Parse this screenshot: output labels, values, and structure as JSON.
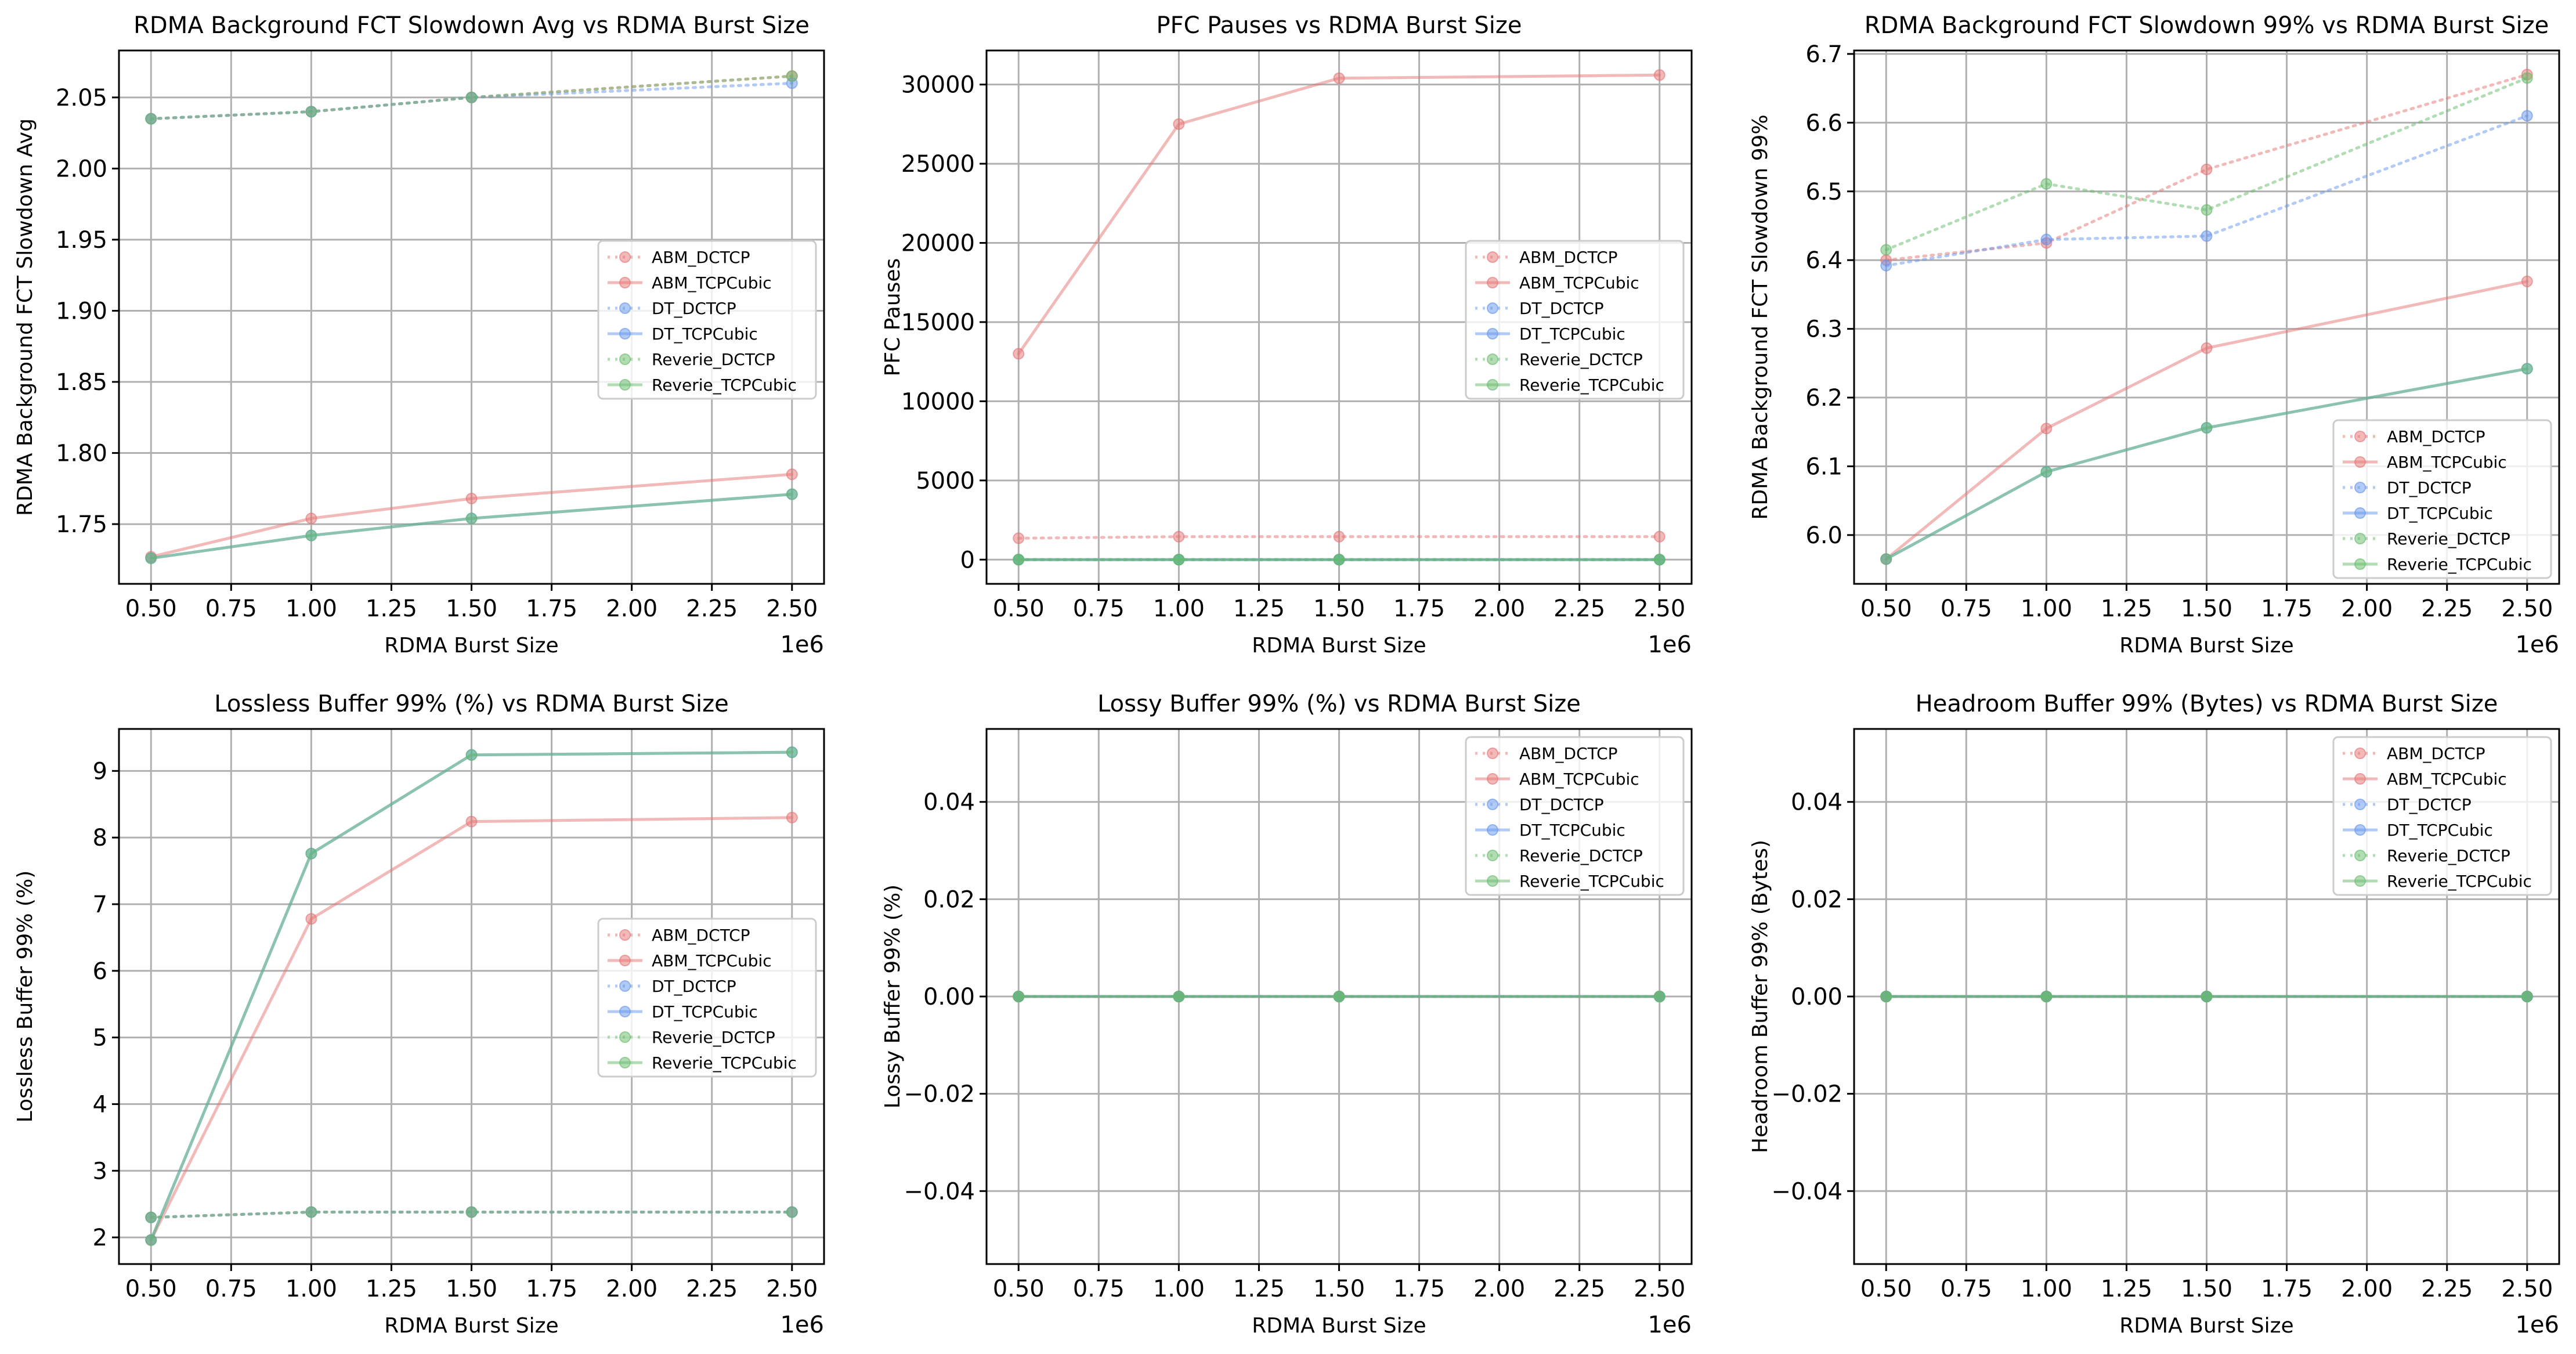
{
  "styles": {
    "ABM_DCTCP": {
      "color": "#e57373",
      "dash": "dotted"
    },
    "ABM_TCPCubic": {
      "color": "#e57373",
      "dash": "solid"
    },
    "DT_DCTCP": {
      "color": "#6495ed",
      "dash": "dotted"
    },
    "DT_TCPCubic": {
      "color": "#6495ed",
      "dash": "solid"
    },
    "Reverie_DCTCP": {
      "color": "#66bb6a",
      "dash": "dotted"
    },
    "Reverie_TCPCubic": {
      "color": "#66bb6a",
      "dash": "solid"
    }
  },
  "chart_data": [
    {
      "type": "line",
      "title": "RDMA Background FCT Slowdown Avg vs RDMA Burst Size",
      "xlabel": "RDMA Burst Size",
      "ylabel": "RDMA Background FCT Slowdown Avg",
      "x_offset_label": "1e6",
      "xlim": [
        0.4,
        2.6
      ],
      "ylim": [
        1.708,
        2.083
      ],
      "xticks": [
        0.5,
        0.75,
        1.0,
        1.25,
        1.5,
        1.75,
        2.0,
        2.25,
        2.5
      ],
      "xtick_labels": [
        "0.50",
        "0.75",
        "1.00",
        "1.25",
        "1.50",
        "1.75",
        "2.00",
        "2.25",
        "2.50"
      ],
      "yticks": [
        1.75,
        1.8,
        1.85,
        1.9,
        1.95,
        2.0,
        2.05
      ],
      "ytick_labels": [
        "1.75",
        "1.80",
        "1.85",
        "1.90",
        "1.95",
        "2.00",
        "2.05"
      ],
      "grid": true,
      "legend_position": "center-right",
      "x": [
        0.5,
        1.0,
        1.5,
        2.5
      ],
      "series": [
        {
          "name": "ABM_DCTCP",
          "values": [
            2.035,
            2.04,
            2.05,
            2.065
          ]
        },
        {
          "name": "ABM_TCPCubic",
          "values": [
            1.727,
            1.754,
            1.768,
            1.785
          ]
        },
        {
          "name": "DT_DCTCP",
          "values": [
            2.035,
            2.04,
            2.05,
            2.06
          ]
        },
        {
          "name": "DT_TCPCubic",
          "values": [
            1.726,
            1.742,
            1.754,
            1.771
          ]
        },
        {
          "name": "Reverie_DCTCP",
          "values": [
            2.035,
            2.04,
            2.05,
            2.065
          ]
        },
        {
          "name": "Reverie_TCPCubic",
          "values": [
            1.726,
            1.742,
            1.754,
            1.771
          ]
        }
      ]
    },
    {
      "type": "line",
      "title": "PFC Pauses vs RDMA Burst Size",
      "xlabel": "RDMA Burst Size",
      "ylabel": "PFC Pauses",
      "x_offset_label": "1e6",
      "xlim": [
        0.4,
        2.6
      ],
      "ylim": [
        -1530,
        32150
      ],
      "xticks": [
        0.5,
        0.75,
        1.0,
        1.25,
        1.5,
        1.75,
        2.0,
        2.25,
        2.5
      ],
      "xtick_labels": [
        "0.50",
        "0.75",
        "1.00",
        "1.25",
        "1.50",
        "1.75",
        "2.00",
        "2.25",
        "2.50"
      ],
      "yticks": [
        0,
        5000,
        10000,
        15000,
        20000,
        25000,
        30000
      ],
      "ytick_labels": [
        "0",
        "5000",
        "10000",
        "15000",
        "20000",
        "25000",
        "30000"
      ],
      "grid": true,
      "legend_position": "center-right",
      "x": [
        0.5,
        1.0,
        1.5,
        2.5
      ],
      "series": [
        {
          "name": "ABM_DCTCP",
          "values": [
            1350,
            1450,
            1450,
            1450
          ]
        },
        {
          "name": "ABM_TCPCubic",
          "values": [
            13000,
            27500,
            30400,
            30600
          ]
        },
        {
          "name": "DT_DCTCP",
          "values": [
            0,
            0,
            0,
            0
          ]
        },
        {
          "name": "DT_TCPCubic",
          "values": [
            0,
            0,
            0,
            0
          ]
        },
        {
          "name": "Reverie_DCTCP",
          "values": [
            0,
            0,
            0,
            0
          ]
        },
        {
          "name": "Reverie_TCPCubic",
          "values": [
            0,
            0,
            0,
            0
          ]
        }
      ]
    },
    {
      "type": "line",
      "title": "RDMA Background FCT Slowdown 99% vs RDMA Burst Size",
      "xlabel": "RDMA Burst Size",
      "ylabel": "RDMA Background FCT Slowdown 99%",
      "x_offset_label": "1e6",
      "xlim": [
        0.4,
        2.6
      ],
      "ylim": [
        5.929,
        6.705
      ],
      "xticks": [
        0.5,
        0.75,
        1.0,
        1.25,
        1.5,
        1.75,
        2.0,
        2.25,
        2.5
      ],
      "xtick_labels": [
        "0.50",
        "0.75",
        "1.00",
        "1.25",
        "1.50",
        "1.75",
        "2.00",
        "2.25",
        "2.50"
      ],
      "yticks": [
        6.0,
        6.1,
        6.2,
        6.3,
        6.4,
        6.5,
        6.6,
        6.7
      ],
      "ytick_labels": [
        "6.0",
        "6.1",
        "6.2",
        "6.3",
        "6.4",
        "6.5",
        "6.6",
        "6.7"
      ],
      "grid": true,
      "legend_position": "lower-right",
      "x": [
        0.5,
        1.0,
        1.5,
        2.5
      ],
      "series": [
        {
          "name": "ABM_DCTCP",
          "values": [
            6.4,
            6.425,
            6.532,
            6.67
          ]
        },
        {
          "name": "ABM_TCPCubic",
          "values": [
            5.965,
            6.155,
            6.272,
            6.369
          ]
        },
        {
          "name": "DT_DCTCP",
          "values": [
            6.392,
            6.43,
            6.435,
            6.61
          ]
        },
        {
          "name": "DT_TCPCubic",
          "values": [
            5.965,
            6.092,
            6.156,
            6.242
          ]
        },
        {
          "name": "Reverie_DCTCP",
          "values": [
            6.415,
            6.511,
            6.473,
            6.665
          ]
        },
        {
          "name": "Reverie_TCPCubic",
          "values": [
            5.965,
            6.092,
            6.156,
            6.242
          ]
        }
      ]
    },
    {
      "type": "line",
      "title": "Lossless Buffer 99% (%) vs RDMA Burst Size",
      "xlabel": "RDMA Burst Size",
      "ylabel": "Lossless Buffer 99% (%)",
      "x_offset_label": "1e6",
      "xlim": [
        0.4,
        2.6
      ],
      "ylim": [
        1.6,
        9.63
      ],
      "xticks": [
        0.5,
        0.75,
        1.0,
        1.25,
        1.5,
        1.75,
        2.0,
        2.25,
        2.5
      ],
      "xtick_labels": [
        "0.50",
        "0.75",
        "1.00",
        "1.25",
        "1.50",
        "1.75",
        "2.00",
        "2.25",
        "2.50"
      ],
      "yticks": [
        2,
        3,
        4,
        5,
        6,
        7,
        8,
        9
      ],
      "ytick_labels": [
        "2",
        "3",
        "4",
        "5",
        "6",
        "7",
        "8",
        "9"
      ],
      "grid": true,
      "legend_position": "center-right",
      "x": [
        0.5,
        1.0,
        1.5,
        2.5
      ],
      "series": [
        {
          "name": "ABM_DCTCP",
          "values": [
            2.3,
            2.38,
            2.38,
            2.38
          ]
        },
        {
          "name": "ABM_TCPCubic",
          "values": [
            1.96,
            6.78,
            8.24,
            8.3
          ]
        },
        {
          "name": "DT_DCTCP",
          "values": [
            2.3,
            2.38,
            2.38,
            2.38
          ]
        },
        {
          "name": "DT_TCPCubic",
          "values": [
            1.96,
            7.76,
            9.24,
            9.28
          ]
        },
        {
          "name": "Reverie_DCTCP",
          "values": [
            2.3,
            2.38,
            2.38,
            2.38
          ]
        },
        {
          "name": "Reverie_TCPCubic",
          "values": [
            1.96,
            7.76,
            9.24,
            9.28
          ]
        }
      ]
    },
    {
      "type": "line",
      "title": "Lossy Buffer 99% (%) vs RDMA Burst Size",
      "xlabel": "RDMA Burst Size",
      "ylabel": "Lossy Buffer 99% (%)",
      "x_offset_label": "1e6",
      "xlim": [
        0.4,
        2.6
      ],
      "ylim": [
        -0.055,
        0.055
      ],
      "xticks": [
        0.5,
        0.75,
        1.0,
        1.25,
        1.5,
        1.75,
        2.0,
        2.25,
        2.5
      ],
      "xtick_labels": [
        "0.50",
        "0.75",
        "1.00",
        "1.25",
        "1.50",
        "1.75",
        "2.00",
        "2.25",
        "2.50"
      ],
      "yticks": [
        -0.04,
        -0.02,
        0.0,
        0.02,
        0.04
      ],
      "ytick_labels": [
        "−0.04",
        "−0.02",
        "0.00",
        "0.02",
        "0.04"
      ],
      "grid": true,
      "legend_position": "upper-right",
      "x": [
        0.5,
        1.0,
        1.5,
        2.5
      ],
      "series": [
        {
          "name": "ABM_DCTCP",
          "values": [
            0,
            0,
            0,
            0
          ]
        },
        {
          "name": "ABM_TCPCubic",
          "values": [
            0,
            0,
            0,
            0
          ]
        },
        {
          "name": "DT_DCTCP",
          "values": [
            0,
            0,
            0,
            0
          ]
        },
        {
          "name": "DT_TCPCubic",
          "values": [
            0,
            0,
            0,
            0
          ]
        },
        {
          "name": "Reverie_DCTCP",
          "values": [
            0,
            0,
            0,
            0
          ]
        },
        {
          "name": "Reverie_TCPCubic",
          "values": [
            0,
            0,
            0,
            0
          ]
        }
      ]
    },
    {
      "type": "line",
      "title": "Headroom Buffer 99% (Bytes) vs RDMA Burst Size",
      "xlabel": "RDMA Burst Size",
      "ylabel": "Headroom Buffer 99% (Bytes)",
      "x_offset_label": "1e6",
      "xlim": [
        0.4,
        2.6
      ],
      "ylim": [
        -0.055,
        0.055
      ],
      "xticks": [
        0.5,
        0.75,
        1.0,
        1.25,
        1.5,
        1.75,
        2.0,
        2.25,
        2.5
      ],
      "xtick_labels": [
        "0.50",
        "0.75",
        "1.00",
        "1.25",
        "1.50",
        "1.75",
        "2.00",
        "2.25",
        "2.50"
      ],
      "yticks": [
        -0.04,
        -0.02,
        0.0,
        0.02,
        0.04
      ],
      "ytick_labels": [
        "−0.04",
        "−0.02",
        "0.00",
        "0.02",
        "0.04"
      ],
      "grid": true,
      "legend_position": "upper-right",
      "x": [
        0.5,
        1.0,
        1.5,
        2.5
      ],
      "series": [
        {
          "name": "ABM_DCTCP",
          "values": [
            0,
            0,
            0,
            0
          ]
        },
        {
          "name": "ABM_TCPCubic",
          "values": [
            0,
            0,
            0,
            0
          ]
        },
        {
          "name": "DT_DCTCP",
          "values": [
            0,
            0,
            0,
            0
          ]
        },
        {
          "name": "DT_TCPCubic",
          "values": [
            0,
            0,
            0,
            0
          ]
        },
        {
          "name": "Reverie_DCTCP",
          "values": [
            0,
            0,
            0,
            0
          ]
        },
        {
          "name": "Reverie_TCPCubic",
          "values": [
            0,
            0,
            0,
            0
          ]
        }
      ]
    }
  ]
}
